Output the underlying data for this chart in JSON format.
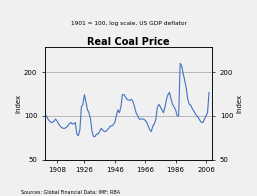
{
  "title": "Real Coal Price",
  "subtitle": "1901 = 100, log scale, US GDP deflator",
  "ylabel_left": "Index",
  "ylabel_right": "Index",
  "source": "Sources: Global Financial Data; IMF; RBA",
  "xticks": [
    1908,
    1926,
    1946,
    1966,
    1986,
    2006
  ],
  "yticks": [
    50,
    100,
    200
  ],
  "ylim": [
    50,
    300
  ],
  "xlim": [
    1900,
    2010
  ],
  "line_color": "#4472C4",
  "background_color": "#f0f0f0",
  "years": [
    1900,
    1901,
    1902,
    1903,
    1904,
    1905,
    1906,
    1907,
    1908,
    1909,
    1910,
    1911,
    1912,
    1913,
    1914,
    1915,
    1916,
    1917,
    1918,
    1919,
    1920,
    1921,
    1922,
    1923,
    1924,
    1925,
    1926,
    1927,
    1928,
    1929,
    1930,
    1931,
    1932,
    1933,
    1934,
    1935,
    1936,
    1937,
    1938,
    1939,
    1940,
    1941,
    1942,
    1943,
    1944,
    1945,
    1946,
    1947,
    1948,
    1949,
    1950,
    1951,
    1952,
    1953,
    1954,
    1955,
    1956,
    1957,
    1958,
    1959,
    1960,
    1961,
    1962,
    1963,
    1964,
    1965,
    1966,
    1967,
    1968,
    1969,
    1970,
    1971,
    1972,
    1973,
    1974,
    1975,
    1976,
    1977,
    1978,
    1979,
    1980,
    1981,
    1982,
    1983,
    1984,
    1985,
    1986,
    1987,
    1988,
    1989,
    1990,
    1991,
    1992,
    1993,
    1994,
    1995,
    1996,
    1997,
    1998,
    1999,
    2000,
    2001,
    2002,
    2003,
    2004,
    2005,
    2006,
    2007,
    2008
  ],
  "values": [
    100,
    100,
    95,
    92,
    90,
    90,
    92,
    95,
    92,
    88,
    85,
    83,
    82,
    82,
    83,
    85,
    88,
    90,
    88,
    88,
    90,
    75,
    73,
    80,
    115,
    120,
    140,
    125,
    110,
    105,
    95,
    78,
    72,
    72,
    75,
    75,
    78,
    82,
    80,
    78,
    78,
    80,
    82,
    85,
    85,
    87,
    90,
    100,
    110,
    105,
    115,
    140,
    140,
    135,
    130,
    128,
    128,
    130,
    125,
    115,
    105,
    100,
    95,
    95,
    95,
    95,
    93,
    90,
    85,
    80,
    78,
    85,
    88,
    95,
    115,
    120,
    115,
    110,
    105,
    115,
    130,
    140,
    145,
    130,
    120,
    115,
    110,
    100,
    100,
    230,
    220,
    195,
    175,
    155,
    130,
    120,
    118,
    112,
    108,
    103,
    100,
    97,
    93,
    90,
    90,
    95,
    100,
    105,
    145
  ]
}
